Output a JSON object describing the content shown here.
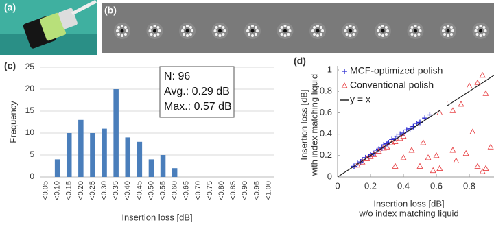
{
  "panel_a": {
    "label": "(a)"
  },
  "panel_b": {
    "label": "(b)"
  },
  "chart_data": [
    {
      "type": "bar",
      "panel_label": "(c)",
      "ylabel": "Frequency",
      "xlabel": "Insertion loss [dB]",
      "categories": [
        "<0.05",
        "<0.10",
        "<0.15",
        "<0.20",
        "<0.25",
        "<0.30",
        "<0.35",
        "<0.40",
        "<0.45",
        "<0.50",
        "<0.55",
        "<0.60",
        "<0.65",
        "<0.70",
        "<0.75",
        "<0.80",
        "<0.85",
        "<0.90",
        "<0.95",
        "<1.00"
      ],
      "values": [
        0,
        4,
        10,
        13,
        10,
        11,
        20,
        9,
        8,
        4,
        5,
        2,
        0,
        0,
        0,
        0,
        0,
        0,
        0,
        0
      ],
      "color": "#4a7ebb",
      "ylim": [
        0,
        25
      ],
      "yticks": [
        0,
        5,
        10,
        15,
        20,
        25
      ],
      "grid": true,
      "annotations": [
        "N: 96",
        "Avg.: 0.29 dB",
        "Max.: 0.57 dB"
      ]
    },
    {
      "type": "scatter",
      "panel_label": "(d)",
      "ylabel": [
        "Insertion loss [dB]",
        "with index matching liquid"
      ],
      "xlabel": [
        "Insertion loss [dB]",
        "w/o index matching liquid"
      ],
      "xlim": [
        0,
        0.95
      ],
      "ylim": [
        0,
        1
      ],
      "xticks": [
        0,
        0.2,
        0.4,
        0.6,
        0.8
      ],
      "yticks": [
        0,
        0.2,
        0.4,
        0.6,
        0.8,
        1
      ],
      "grid": false,
      "legend": "top-left",
      "series": [
        {
          "name": "MCF-optimized polish",
          "color": "#2a2ad0",
          "marker": "plus",
          "x": [
            0.1,
            0.12,
            0.14,
            0.15,
            0.17,
            0.19,
            0.2,
            0.22,
            0.24,
            0.25,
            0.27,
            0.28,
            0.3,
            0.31,
            0.33,
            0.35,
            0.36,
            0.38,
            0.4,
            0.42,
            0.44,
            0.46,
            0.48,
            0.5,
            0.53,
            0.56
          ],
          "values": [
            0.1,
            0.13,
            0.14,
            0.16,
            0.18,
            0.19,
            0.21,
            0.22,
            0.25,
            0.26,
            0.27,
            0.3,
            0.31,
            0.32,
            0.35,
            0.36,
            0.38,
            0.4,
            0.41,
            0.44,
            0.45,
            0.47,
            0.5,
            0.51,
            0.55,
            0.58
          ]
        },
        {
          "name": "Conventional polish",
          "color": "#e8474a",
          "marker": "triangle",
          "x": [
            0.12,
            0.15,
            0.18,
            0.2,
            0.22,
            0.25,
            0.28,
            0.3,
            0.33,
            0.35,
            0.38,
            0.4,
            0.62,
            0.65,
            0.7,
            0.75,
            0.8,
            0.85,
            0.9,
            0.88,
            0.6,
            0.55,
            0.5,
            0.58,
            0.62,
            0.7,
            0.72,
            0.78,
            0.85,
            0.9,
            0.88,
            0.93,
            0.4,
            0.35,
            0.45,
            0.52,
            0.82
          ],
          "values": [
            0.11,
            0.14,
            0.17,
            0.19,
            0.21,
            0.24,
            0.27,
            0.28,
            0.32,
            0.33,
            0.36,
            0.38,
            0.6,
            0.72,
            0.62,
            0.68,
            0.85,
            0.88,
            0.78,
            0.95,
            0.2,
            0.18,
            0.1,
            0.06,
            0.08,
            0.25,
            0.15,
            0.22,
            0.1,
            0.08,
            0.05,
            0.28,
            0.18,
            0.1,
            0.25,
            0.32,
            0.42
          ]
        },
        {
          "name": "y = x",
          "color": "#222222",
          "marker": "line",
          "x": [
            0,
            0.95
          ],
          "values": [
            0,
            0.95
          ]
        }
      ]
    }
  ]
}
